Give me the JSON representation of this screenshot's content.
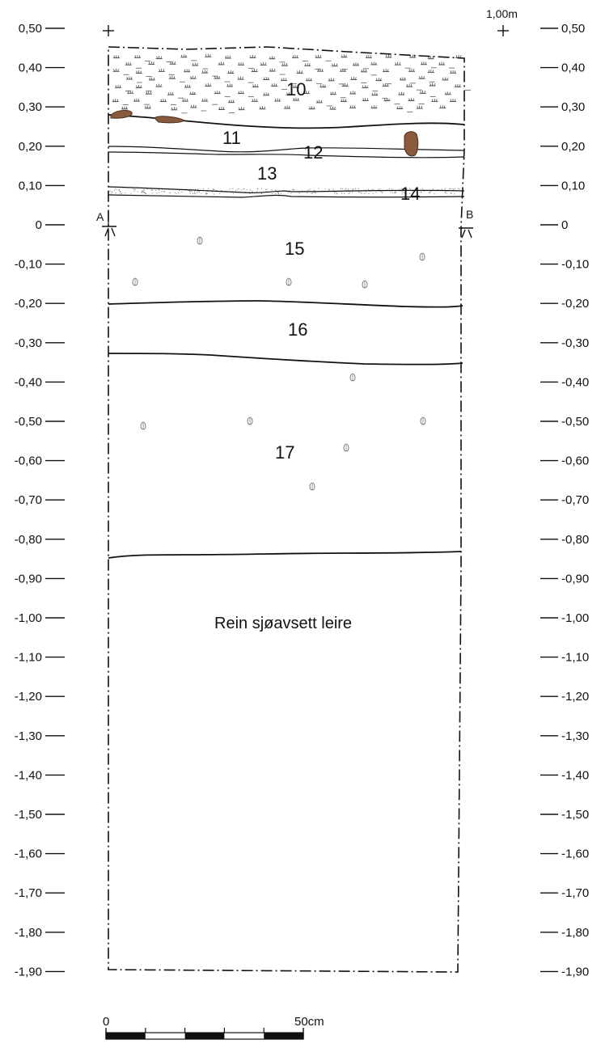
{
  "drawing": {
    "left_axis_labels": [
      "0,50",
      "0,40",
      "0,30",
      "0,20",
      "0,10",
      "0",
      "-0,10",
      "-0,20",
      "-0,30",
      "-0,40",
      "-0,50",
      "-0,60",
      "-0,70",
      "-0,80",
      "-0,90",
      "-1,00",
      "-1,10",
      "-1,20",
      "-1,30",
      "-1,40",
      "-1,50",
      "-1,60",
      "-1,70",
      "-1,80",
      "-1,90"
    ],
    "right_axis_labels": [
      "0,50",
      "0,40",
      "0,30",
      "0,20",
      "0,10",
      "0",
      "-0,10",
      "-0,20",
      "-0,30",
      "-0,40",
      "-0,50",
      "-0,60",
      "-0,70",
      "-0,80",
      "-0,90",
      "-1,00",
      "-1,10",
      "-1,20",
      "-1,30",
      "-1,40",
      "-1,50",
      "-1,60",
      "-1,70",
      "-1,80",
      "-1,90"
    ],
    "top_right_label": "1,00m",
    "corner_a": "A",
    "corner_b": "B",
    "layers": [
      {
        "id": "10",
        "label": "10"
      },
      {
        "id": "11",
        "label": "11"
      },
      {
        "id": "12",
        "label": "12"
      },
      {
        "id": "13",
        "label": "13"
      },
      {
        "id": "14",
        "label": "14"
      },
      {
        "id": "15",
        "label": "15"
      },
      {
        "id": "16",
        "label": "16"
      },
      {
        "id": "17",
        "label": "17"
      }
    ],
    "bottom_layer_label": "Rein sjøavsett leire",
    "scale_bar": {
      "start_label": "0",
      "end_label": "50cm"
    },
    "colors": {
      "line": "#111111",
      "stone_fill": "#8a5a3c",
      "stone_stroke": "#4a2e1c",
      "sand_dots": "#9a9a9a"
    }
  }
}
